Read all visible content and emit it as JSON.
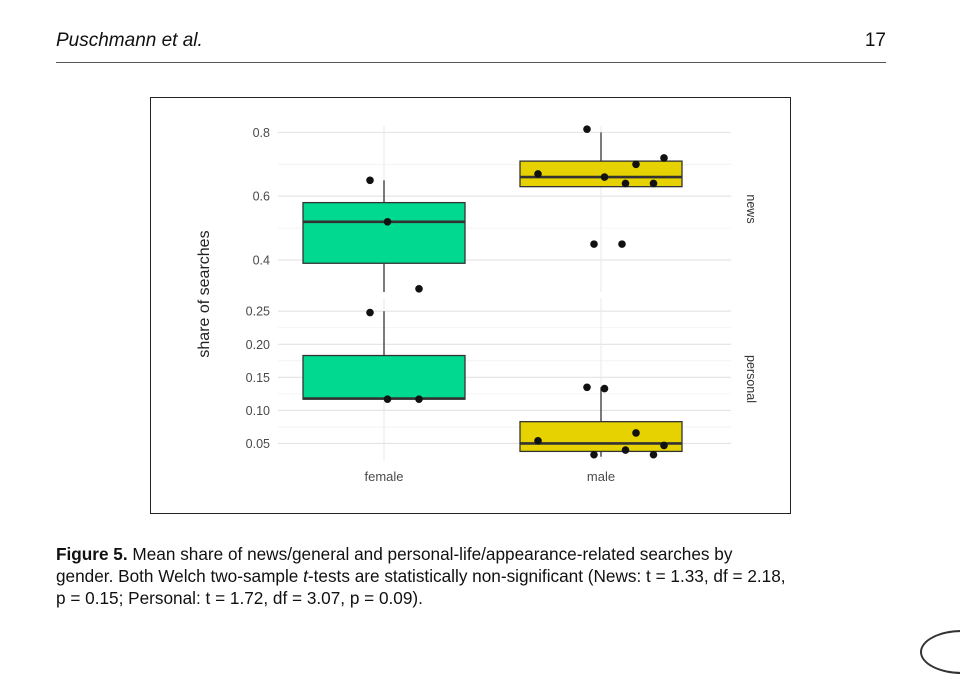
{
  "header": {
    "authors": "Puschmann et al.",
    "page_number": "17"
  },
  "figure": {
    "caption_label": "Figure 5.",
    "caption_line1": "Mean share of news/general and personal-life/appearance-related searches by",
    "caption_line2_a": "gender. Both Welch two-sample ",
    "caption_line2_t": "t",
    "caption_line2_b": "-tests are statistically non-significant (News: ",
    "caption_line2_stat": "t = 1.33, df = 2.18,",
    "caption_line3": "p = 0.15; Personal: t = 1.72, df = 3.07, p = 0.09)."
  },
  "chart_data": {
    "type": "box",
    "ylabel": "share of searches",
    "categories": [
      "female",
      "male"
    ],
    "fill_colors": {
      "female": "#00d98f",
      "male": "#e6d200"
    },
    "panels": [
      {
        "name": "news",
        "ylim": [
          0.3,
          0.82
        ],
        "yticks": [
          0.4,
          0.6,
          0.8
        ],
        "ytick_labels": [
          "0.4",
          "0.6",
          "0.8"
        ],
        "boxes": [
          {
            "category": "female",
            "lower_whisker": 0.3,
            "q1": 0.39,
            "median": 0.52,
            "q3": 0.58,
            "upper_whisker": 0.65
          },
          {
            "category": "male",
            "lower_whisker": 0.63,
            "q1": 0.63,
            "median": 0.66,
            "q3": 0.71,
            "upper_whisker": 0.8
          }
        ],
        "points": [
          {
            "category": "female",
            "values": [
              0.65,
              0.52,
              0.31
            ]
          },
          {
            "category": "male",
            "values": [
              0.81,
              0.66,
              0.7,
              0.67,
              0.72,
              0.64,
              0.64,
              0.45,
              0.45
            ]
          }
        ]
      },
      {
        "name": "personal",
        "ylim": [
          0.025,
          0.27
        ],
        "yticks": [
          0.05,
          0.1,
          0.15,
          0.2,
          0.25
        ],
        "ytick_labels": [
          "0.05",
          "0.10",
          "0.15",
          "0.20",
          "0.25"
        ],
        "boxes": [
          {
            "category": "female",
            "lower_whisker": 0.117,
            "q1": 0.117,
            "median": 0.118,
            "q3": 0.183,
            "upper_whisker": 0.25
          },
          {
            "category": "male",
            "lower_whisker": 0.03,
            "q1": 0.038,
            "median": 0.05,
            "q3": 0.083,
            "upper_whisker": 0.135
          }
        ],
        "points": [
          {
            "category": "female",
            "values": [
              0.248,
              0.117,
              0.117
            ]
          },
          {
            "category": "male",
            "values": [
              0.135,
              0.133,
              0.066,
              0.054,
              0.047,
              0.04,
              0.033,
              0.033
            ]
          }
        ]
      }
    ]
  }
}
